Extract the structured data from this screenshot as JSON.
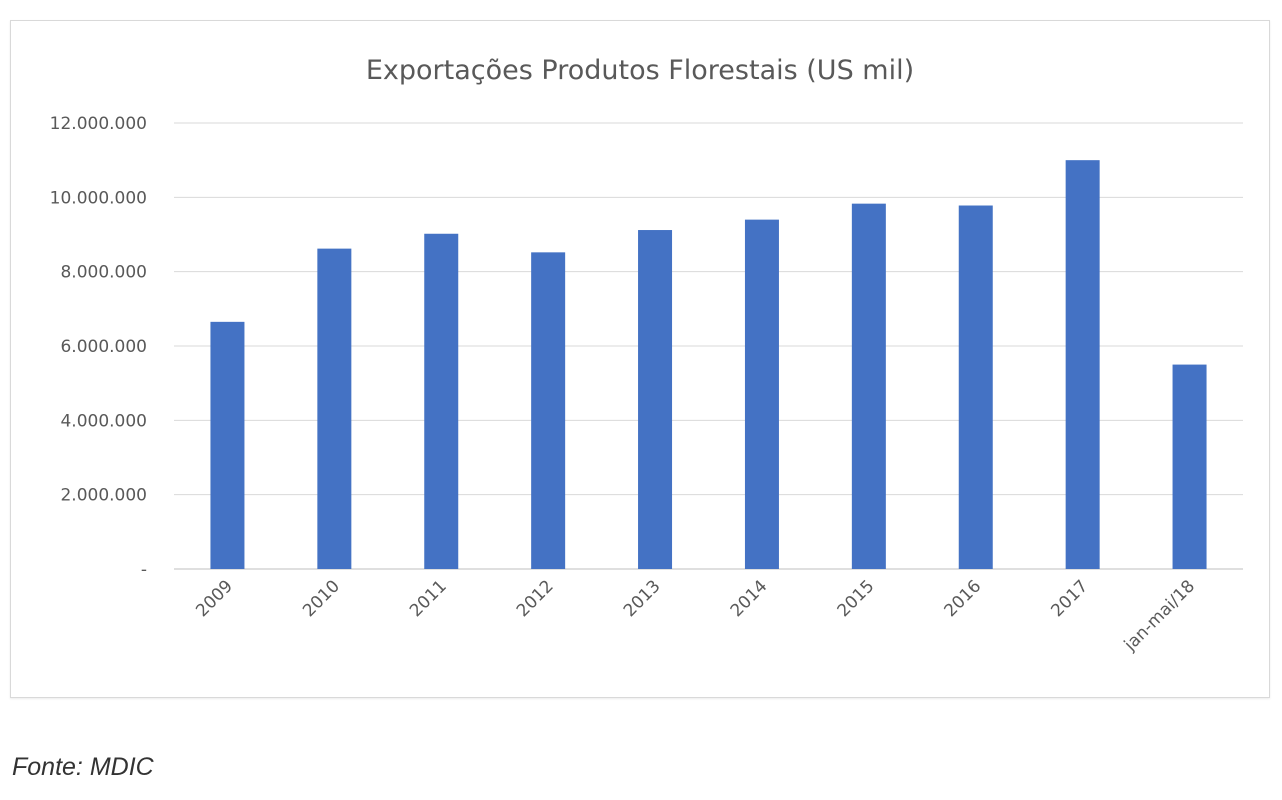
{
  "chart_data": {
    "type": "bar",
    "title": "Exportações Produtos Florestais (US mil)",
    "categories": [
      "2009",
      "2010",
      "2011",
      "2012",
      "2013",
      "2014",
      "2015",
      "2016",
      "2017",
      "jan-mai/18"
    ],
    "values": [
      6650000,
      8620000,
      9020000,
      8520000,
      9120000,
      9400000,
      9830000,
      9780000,
      11000000,
      5500000
    ],
    "ylim": [
      0,
      12000000
    ],
    "yticks": [
      0,
      2000000,
      4000000,
      6000000,
      8000000,
      10000000,
      12000000
    ],
    "ytick_labels": [
      "-",
      "2.000.000",
      "4.000.000",
      "6.000.000",
      "8.000.000",
      "10.000.000",
      "12.000.000"
    ],
    "bar_color": "#4472C4",
    "grid": true,
    "xlabel": "",
    "ylabel": ""
  },
  "source": "Fonte: MDIC"
}
